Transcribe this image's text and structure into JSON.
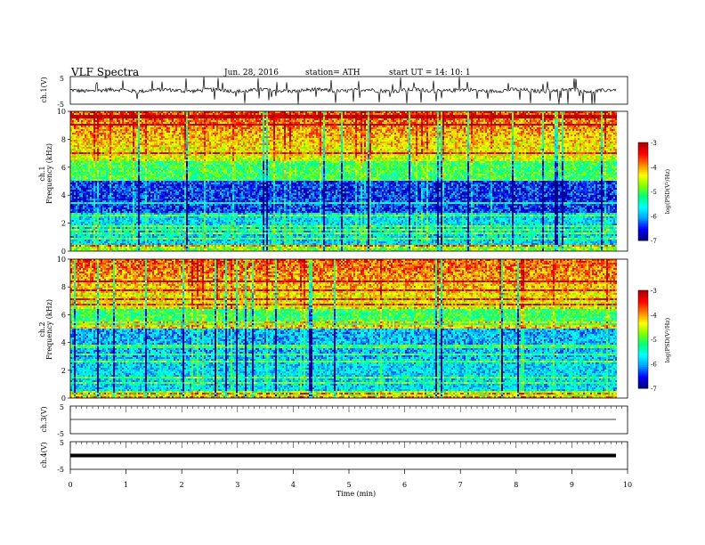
{
  "header": {
    "title": "VLF  Spectra",
    "date": "Jun. 28, 2016",
    "station": "station= ATH",
    "start": "start  UT =   14: 10: 1"
  },
  "chart_data": [
    {
      "type": "line",
      "ylabel": "ch.1(V)",
      "ylim": [
        -5,
        5
      ],
      "yticks": [
        "5",
        "-5"
      ],
      "x_range_min": [
        0,
        9.8
      ],
      "description_values": {
        "baseline": 0,
        "typical_spike_max": 5
      }
    },
    {
      "type": "heatmap",
      "ylabel_top": "ch.1",
      "ylabel": "Frequency  (kHz)",
      "ylim": [
        0,
        10
      ],
      "yticks": [
        "0",
        "2",
        "4",
        "6",
        "8",
        "10"
      ],
      "colorbar": {
        "label": "log(PSD(V²/Hz)",
        "range": [
          -7,
          -3
        ],
        "ticks": [
          "-3",
          "-4",
          "-5",
          "-6",
          "-7"
        ]
      }
    },
    {
      "type": "heatmap",
      "ylabel_top": "ch.2",
      "ylabel": "Frequency  (kHz)",
      "ylim": [
        0,
        10
      ],
      "yticks": [
        "0",
        "2",
        "4",
        "6",
        "8",
        "10"
      ],
      "colorbar": {
        "label": "log(PSD(V²/Hz)",
        "range": [
          -7,
          -3
        ],
        "ticks": [
          "-3",
          "-4",
          "-5",
          "-6",
          "-7"
        ]
      }
    },
    {
      "type": "line",
      "ylabel": "ch.3(V)",
      "ylim": [
        -5,
        5
      ],
      "yticks": [
        "5",
        "-5"
      ],
      "values_constant": 0
    },
    {
      "type": "line",
      "ylabel": "ch.4(V)",
      "ylim": [
        -5,
        5
      ],
      "yticks": [
        "5",
        "-5"
      ],
      "values_constant": 0
    }
  ],
  "xaxis": {
    "label": "Time  (min)",
    "range": [
      0,
      10
    ],
    "ticks": [
      "0",
      "1",
      "2",
      "3",
      "4",
      "5",
      "6",
      "7",
      "8",
      "9",
      "10"
    ],
    "data_end": 9.8
  },
  "colors": {
    "line": "#000000",
    "colormap": [
      "#000080",
      "#0000ff",
      "#00a0ff",
      "#00ffff",
      "#00ff80",
      "#80ff00",
      "#ffff00",
      "#ff8000",
      "#ff0000",
      "#b00000"
    ]
  }
}
